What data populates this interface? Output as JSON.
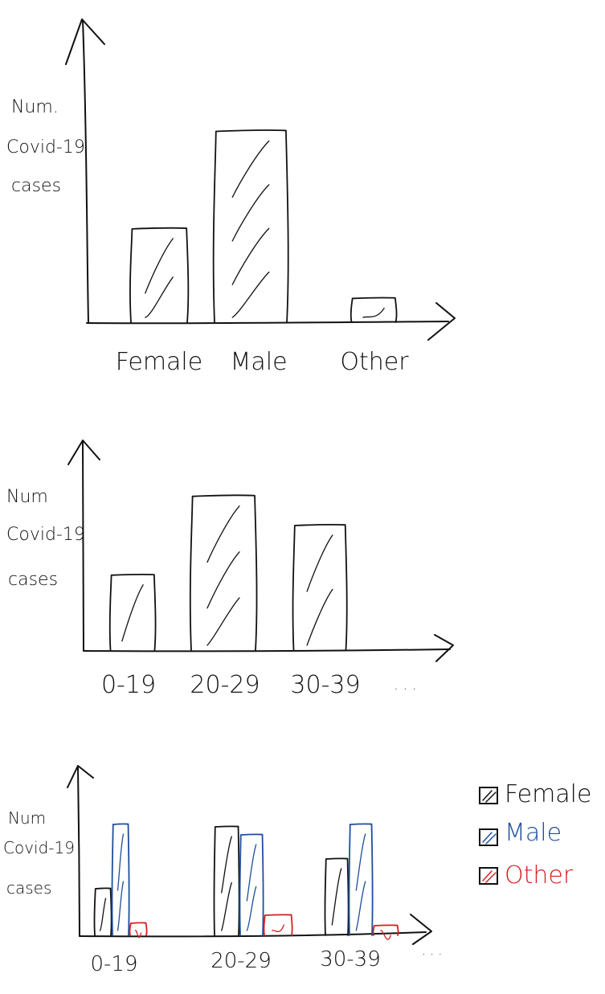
{
  "colors": {
    "ink": "#111111",
    "female": "#111111",
    "male": "#1f4e9c",
    "other": "#d42020",
    "background": "#ffffff"
  },
  "chart_data": [
    {
      "type": "bar",
      "title": "",
      "ylabel_lines": [
        "Num.",
        "Covid-19",
        "cases"
      ],
      "xlabel": "",
      "categories": [
        "Female",
        "Male",
        "Other"
      ],
      "values": [
        110,
        225,
        28
      ],
      "ylim": [
        0,
        360
      ],
      "style": "hand-drawn, hatched bars, no tick values"
    },
    {
      "type": "bar",
      "title": "",
      "ylabel_lines": [
        "Num",
        "Covid-19",
        "cases"
      ],
      "xlabel": "",
      "categories": [
        "0-19",
        "20-29",
        "30-39"
      ],
      "axis_suffix": ". . .",
      "values": [
        95,
        195,
        158
      ],
      "ylim": [
        0,
        265
      ],
      "style": "hand-drawn, hatched bars, no tick values"
    },
    {
      "type": "bar",
      "title": "",
      "ylabel_lines": [
        "Num",
        "Covid-19",
        "cases"
      ],
      "xlabel": "",
      "categories": [
        "0-19",
        "20-29",
        "30-39"
      ],
      "axis_suffix": ". . .",
      "series": [
        {
          "name": "Female",
          "values": [
            58,
            135,
            95
          ]
        },
        {
          "name": "Male",
          "values": [
            138,
            125,
            138
          ]
        },
        {
          "name": "Other",
          "values": [
            15,
            25,
            12
          ]
        }
      ],
      "ylim": [
        0,
        210
      ],
      "legend": "right",
      "style": "hand-drawn grouped bars, hatched, no tick values"
    }
  ]
}
